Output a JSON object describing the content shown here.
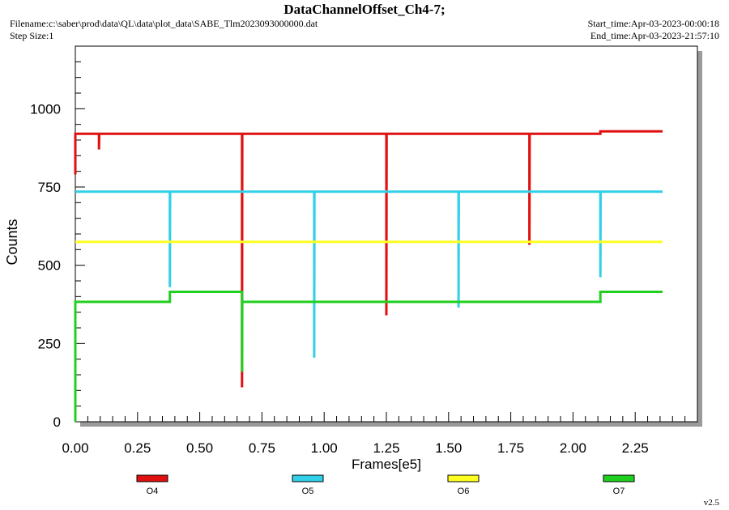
{
  "header": {
    "title": "DataChannelOffset_Ch4-7;",
    "filename": "Filename:c:\\saber\\prod\\data\\QL\\data\\plot_data\\SABE_Tlm2023093000000.dat",
    "step_size": "Step Size:1",
    "start_time": "Start_time:Apr-03-2023-00:00:18",
    "end_time": "End_time:Apr-03-2023-21:57:10"
  },
  "version": "v2.5",
  "chart_data": {
    "type": "line",
    "title": "DataChannelOffset_Ch4-7;",
    "xlabel": "Frames[e5]",
    "ylabel": "Counts",
    "xlim": [
      0,
      2.5
    ],
    "ylim": [
      0,
      1200
    ],
    "x_ticks": [
      "0.00",
      "0.25",
      "0.50",
      "0.75",
      "1.00",
      "1.25",
      "1.50",
      "1.75",
      "2.00",
      "2.25"
    ],
    "y_ticks": [
      "0",
      "250",
      "500",
      "750",
      "1000"
    ],
    "legend_position": "bottom",
    "series": [
      {
        "name": "O4",
        "color": "#e01010",
        "points": [
          [
            0.0,
            790
          ],
          [
            0.0,
            920
          ],
          [
            0.095,
            920
          ],
          [
            0.095,
            870
          ],
          [
            0.096,
            920
          ],
          [
            0.67,
            920
          ],
          [
            0.67,
            110
          ],
          [
            0.671,
            920
          ],
          [
            1.25,
            920
          ],
          [
            1.25,
            340
          ],
          [
            1.251,
            920
          ],
          [
            1.825,
            920
          ],
          [
            1.825,
            565
          ],
          [
            1.826,
            920
          ],
          [
            2.11,
            920
          ],
          [
            2.11,
            928
          ],
          [
            2.36,
            928
          ]
        ]
      },
      {
        "name": "O5",
        "color": "#30d0e8",
        "points": [
          [
            0.0,
            735
          ],
          [
            0.38,
            735
          ],
          [
            0.38,
            430
          ],
          [
            0.381,
            735
          ],
          [
            0.96,
            735
          ],
          [
            0.96,
            205
          ],
          [
            0.961,
            735
          ],
          [
            1.54,
            735
          ],
          [
            1.54,
            365
          ],
          [
            1.541,
            735
          ],
          [
            2.11,
            735
          ],
          [
            2.11,
            462
          ],
          [
            2.111,
            735
          ],
          [
            2.36,
            735
          ]
        ]
      },
      {
        "name": "O6",
        "color": "#ffff20",
        "points": [
          [
            0.0,
            575
          ],
          [
            2.36,
            575
          ]
        ]
      },
      {
        "name": "O7",
        "color": "#20d020",
        "points": [
          [
            0.0,
            0
          ],
          [
            0.0,
            383
          ],
          [
            0.38,
            383
          ],
          [
            0.38,
            415
          ],
          [
            0.67,
            415
          ],
          [
            0.67,
            160
          ],
          [
            0.671,
            383
          ],
          [
            2.11,
            383
          ],
          [
            2.11,
            415
          ],
          [
            2.36,
            415
          ]
        ]
      }
    ]
  }
}
